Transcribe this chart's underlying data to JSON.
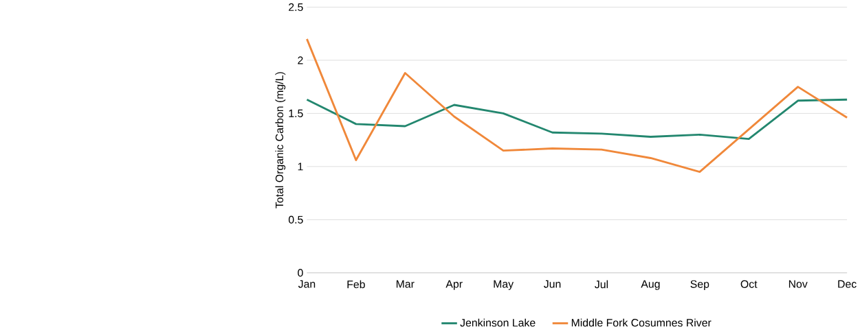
{
  "chart_data": {
    "type": "line",
    "categories": [
      "Jan",
      "Feb",
      "Mar",
      "Apr",
      "May",
      "Jun",
      "Jul",
      "Aug",
      "Sep",
      "Oct",
      "Nov",
      "Dec"
    ],
    "series": [
      {
        "name": "Jenkinson Lake",
        "color": "#23876f",
        "values": [
          1.63,
          1.4,
          1.38,
          1.58,
          1.5,
          1.32,
          1.31,
          1.28,
          1.3,
          1.26,
          1.62,
          1.63
        ]
      },
      {
        "name": "Middle Fork Cosumnes River",
        "color": "#f0883a",
        "values": [
          2.2,
          1.06,
          1.88,
          1.47,
          1.15,
          1.17,
          1.16,
          1.08,
          0.95,
          1.35,
          1.75,
          1.46
        ]
      }
    ],
    "ylabel": "Total Organic Carbon (mg/L)",
    "ylim": [
      0,
      2.5
    ],
    "yticks": [
      0,
      0.5,
      1,
      1.5,
      2,
      2.5
    ],
    "grid": "y",
    "legend": "bottom"
  }
}
